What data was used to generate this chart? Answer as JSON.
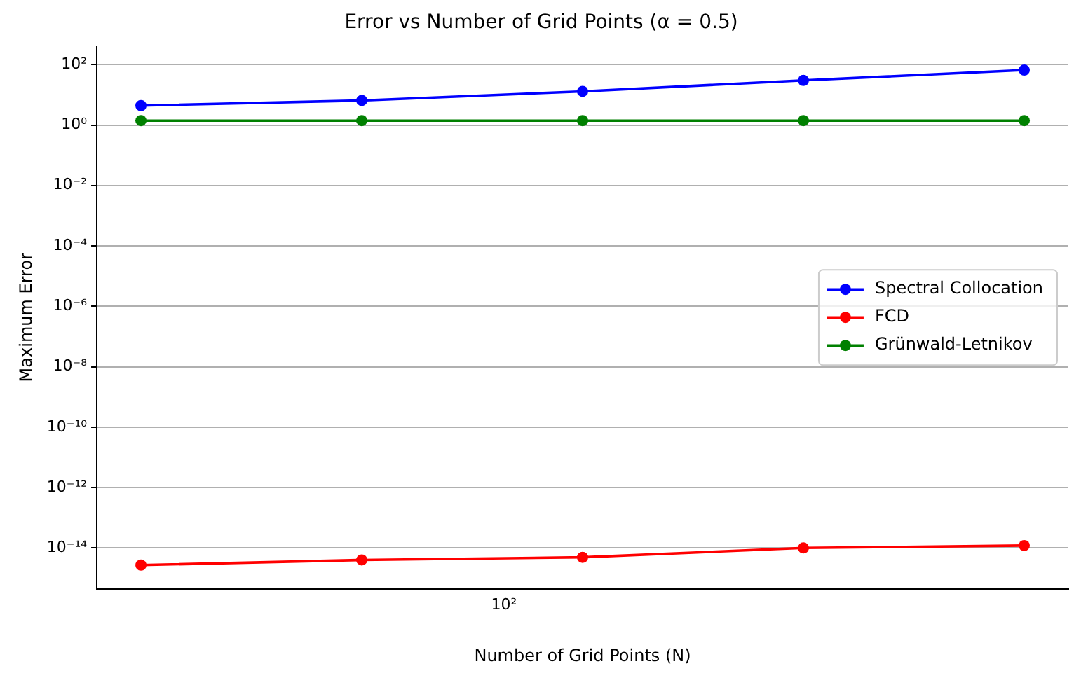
{
  "chart_data": {
    "type": "line",
    "title": "Error vs Number of Grid Points (α = 0.5)",
    "xlabel": "Number of Grid Points (N)",
    "ylabel": "Maximum Error",
    "categories": [
      null,
      null,
      null,
      null,
      null
    ],
    "series": [
      {
        "name": "Spectral Collocation",
        "color": "#0000ff",
        "values": [
          4.4,
          6.5,
          13,
          30,
          66
        ]
      },
      {
        "name": "FCD",
        "color": "#ff0000",
        "values": [
          2.7e-15,
          4e-15,
          4.9e-15,
          1e-14,
          1.2e-14
        ]
      },
      {
        "name": "Grünwald-Letnikov",
        "color": "#008000",
        "values": [
          1.4,
          1.4,
          1.4,
          1.4,
          1.4
        ]
      }
    ],
    "annotations": [
      "10²"
    ],
    "log": "y",
    "ylim": [
      4.4e-16,
      415
    ],
    "yticks": [
      {
        "value": 1e-14,
        "label": "10⁻¹⁴"
      },
      {
        "value": 1e-12,
        "label": "10⁻¹²"
      },
      {
        "value": 1e-10,
        "label": "10⁻¹⁰"
      },
      {
        "value": 1e-08,
        "label": "10⁻⁸"
      },
      {
        "value": 1e-06,
        "label": "10⁻⁶"
      },
      {
        "value": 0.0001,
        "label": "10⁻⁴"
      },
      {
        "value": 0.01,
        "label": "10⁻²"
      },
      {
        "value": 1,
        "label": "10⁰"
      },
      {
        "value": 100,
        "label": "10²"
      }
    ],
    "grid": "y",
    "legend": "center right",
    "marker": "circle",
    "line_style": "solid"
  }
}
